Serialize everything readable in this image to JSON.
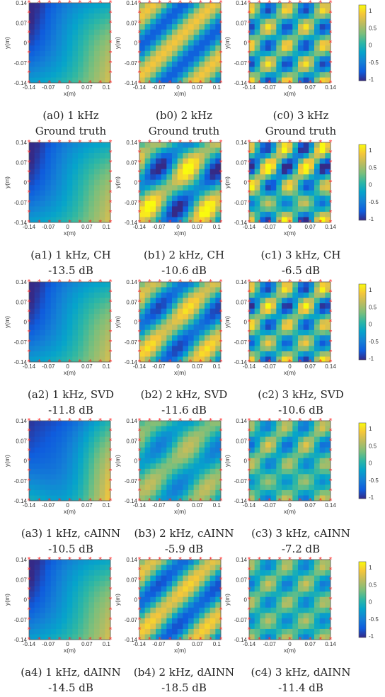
{
  "figure": {
    "colormap": "parula",
    "colorbar": {
      "min": -1,
      "max": 1,
      "ticks": [
        "1",
        "0.5",
        "0",
        "-0.5",
        "-1"
      ]
    },
    "axes": {
      "xlabel": "x(m)",
      "ylabel": "y(m)",
      "x_ticks": [
        "-0.14",
        "-0.07",
        "0",
        "0.07",
        "0.1"
      ],
      "x_ticks_c": [
        "-0.14",
        "-0.07",
        "0",
        "0.07",
        "0.14"
      ],
      "y_ticks": [
        "0.14",
        "0.07",
        "0",
        "-0.07",
        "-0.14"
      ]
    },
    "marker": {
      "symbol": "asterisk",
      "color": "#ff2a2a"
    },
    "rows": [
      {
        "id": "row0",
        "panels": [
          {
            "caption1": "(a0) 1 kHz",
            "caption2": "Ground truth",
            "freq": 1,
            "variant": 0
          },
          {
            "caption1": "(b0) 2 kHz",
            "caption2": "Ground truth",
            "freq": 2,
            "variant": 0
          },
          {
            "caption1": "(c0) 3 kHz",
            "caption2": "Ground truth",
            "freq": 3,
            "variant": 0
          }
        ]
      },
      {
        "id": "row1",
        "panels": [
          {
            "caption1": "(a1) 1 kHz, CH",
            "caption2": "-13.5 dB",
            "freq": 1,
            "variant": 1
          },
          {
            "caption1": "(b1) 2 kHz, CH",
            "caption2": "-10.6 dB",
            "freq": 2,
            "variant": 1
          },
          {
            "caption1": "(c1) 3 kHz, CH",
            "caption2": "-6.5 dB",
            "freq": 3,
            "variant": 1
          }
        ]
      },
      {
        "id": "row2",
        "panels": [
          {
            "caption1": "(a2) 1 kHz, SVD",
            "caption2": "-11.8 dB",
            "freq": 1,
            "variant": 2
          },
          {
            "caption1": "(b2) 2 kHz, SVD",
            "caption2": "-11.6 dB",
            "freq": 2,
            "variant": 2
          },
          {
            "caption1": "(c2) 3 kHz, SVD",
            "caption2": "-10.6 dB",
            "freq": 3,
            "variant": 2
          }
        ]
      },
      {
        "id": "row3",
        "panels": [
          {
            "caption1": "(a3) 1 kHz, cAINN",
            "caption2": "-10.5 dB",
            "freq": 1,
            "variant": 3
          },
          {
            "caption1": "(b3) 2 kHz, cAINN",
            "caption2": "-5.9 dB",
            "freq": 2,
            "variant": 3
          },
          {
            "caption1": "(c3) 3 kHz, cAINN",
            "caption2": "-7.2 dB",
            "freq": 3,
            "variant": 3
          }
        ]
      },
      {
        "id": "row4",
        "panels": [
          {
            "caption1": "(a4) 1 kHz, dAINN",
            "caption2": "-14.5 dB",
            "freq": 1,
            "variant": 4
          },
          {
            "caption1": "(b4) 2 kHz, dAINN",
            "caption2": "-18.5 dB",
            "freq": 2,
            "variant": 4
          },
          {
            "caption1": "(c4) 3 kHz, dAINN",
            "caption2": "-11.4 dB",
            "freq": 3,
            "variant": 4
          }
        ]
      }
    ]
  }
}
